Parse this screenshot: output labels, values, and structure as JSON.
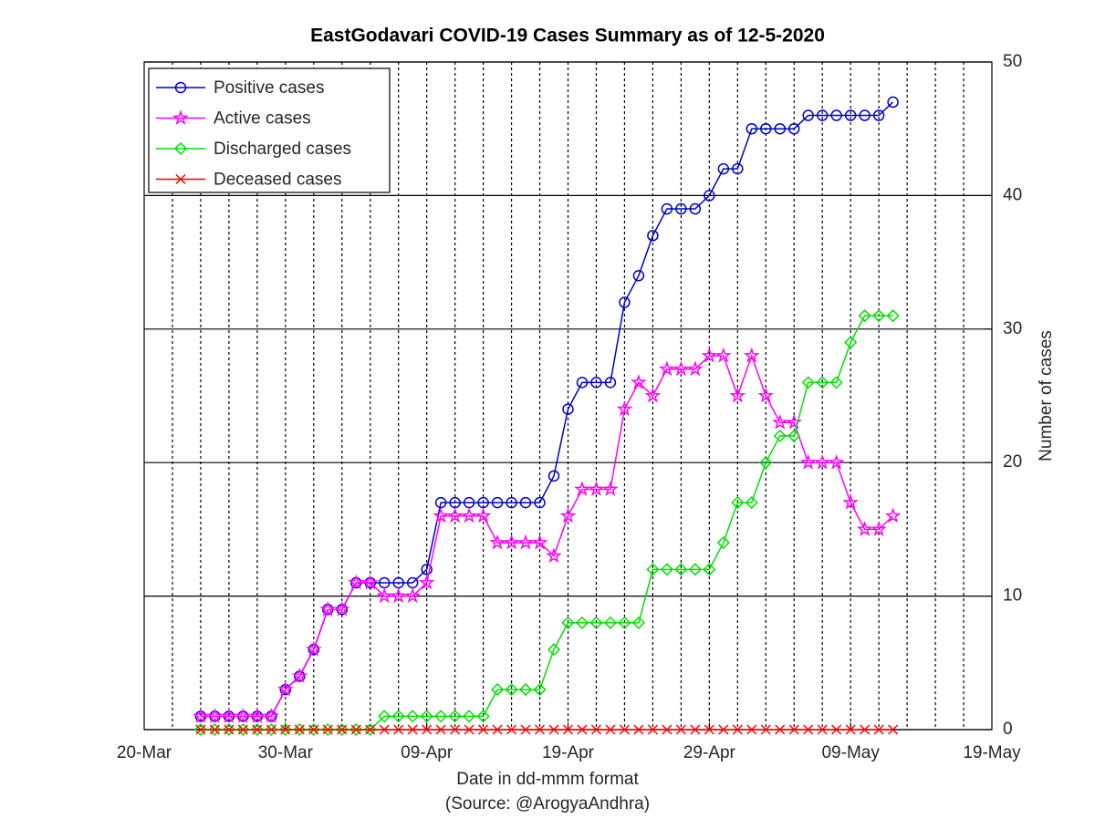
{
  "chart_data": {
    "type": "line",
    "title": "EastGodavari COVID-19 Cases Summary as of 12-5-2020",
    "x_label": "Date in dd-mmm format",
    "source": "(Source: @ArogyaAndhra)",
    "y_label": "Number of cases",
    "x": [
      "24-Mar",
      "25-Mar",
      "26-Mar",
      "27-Mar",
      "28-Mar",
      "29-Mar",
      "30-Mar",
      "31-Mar",
      "01-Apr",
      "02-Apr",
      "03-Apr",
      "04-Apr",
      "05-Apr",
      "06-Apr",
      "07-Apr",
      "08-Apr",
      "09-Apr",
      "10-Apr",
      "11-Apr",
      "12-Apr",
      "13-Apr",
      "14-Apr",
      "15-Apr",
      "16-Apr",
      "17-Apr",
      "18-Apr",
      "19-Apr",
      "20-Apr",
      "21-Apr",
      "22-Apr",
      "23-Apr",
      "24-Apr",
      "25-Apr",
      "26-Apr",
      "27-Apr",
      "28-Apr",
      "29-Apr",
      "30-Apr",
      "01-May",
      "02-May",
      "03-May",
      "04-May",
      "05-May",
      "06-May",
      "07-May",
      "08-May",
      "09-May",
      "10-May",
      "11-May",
      "12-May"
    ],
    "series": [
      {
        "name": "Positive cases",
        "color": "#0000cc",
        "marker": "circle",
        "values": [
          1,
          1,
          1,
          1,
          1,
          1,
          3,
          4,
          6,
          9,
          9,
          11,
          11,
          11,
          11,
          11,
          12,
          17,
          17,
          17,
          17,
          17,
          17,
          17,
          17,
          19,
          24,
          26,
          26,
          26,
          32,
          34,
          37,
          39,
          39,
          39,
          40,
          42,
          42,
          45,
          45,
          45,
          45,
          46,
          46,
          46,
          46,
          46,
          46,
          47
        ]
      },
      {
        "name": "Active cases",
        "color": "#ff00ff",
        "marker": "star",
        "values": [
          1,
          1,
          1,
          1,
          1,
          1,
          3,
          4,
          6,
          9,
          9,
          11,
          11,
          10,
          10,
          10,
          11,
          16,
          16,
          16,
          16,
          14,
          14,
          14,
          14,
          13,
          16,
          18,
          18,
          18,
          24,
          26,
          25,
          27,
          27,
          27,
          28,
          28,
          25,
          28,
          25,
          23,
          23,
          20,
          20,
          20,
          17,
          15,
          15,
          16
        ]
      },
      {
        "name": "Discharged cases",
        "color": "#00e000",
        "marker": "diamond",
        "values": [
          0,
          0,
          0,
          0,
          0,
          0,
          0,
          0,
          0,
          0,
          0,
          0,
          0,
          1,
          1,
          1,
          1,
          1,
          1,
          1,
          1,
          3,
          3,
          3,
          3,
          6,
          8,
          8,
          8,
          8,
          8,
          8,
          12,
          12,
          12,
          12,
          12,
          14,
          17,
          17,
          20,
          22,
          22,
          26,
          26,
          26,
          29,
          31,
          31,
          31
        ]
      },
      {
        "name": "Deceased cases",
        "color": "#ff0000",
        "marker": "cross",
        "values": [
          0,
          0,
          0,
          0,
          0,
          0,
          0,
          0,
          0,
          0,
          0,
          0,
          0,
          0,
          0,
          0,
          0,
          0,
          0,
          0,
          0,
          0,
          0,
          0,
          0,
          0,
          0,
          0,
          0,
          0,
          0,
          0,
          0,
          0,
          0,
          0,
          0,
          0,
          0,
          0,
          0,
          0,
          0,
          0,
          0,
          0,
          0,
          0,
          0,
          0
        ]
      }
    ],
    "xlim": [
      "20-Mar",
      "19-May"
    ],
    "xticks": [
      "20-Mar",
      "30-Mar",
      "09-Apr",
      "19-Apr",
      "29-Apr",
      "09-May",
      "19-May"
    ],
    "ylim": [
      0,
      50
    ],
    "yticks": [
      0,
      10,
      20,
      30,
      40,
      50
    ],
    "y_axis_side": "right",
    "grid": true,
    "legend": "top-left"
  }
}
